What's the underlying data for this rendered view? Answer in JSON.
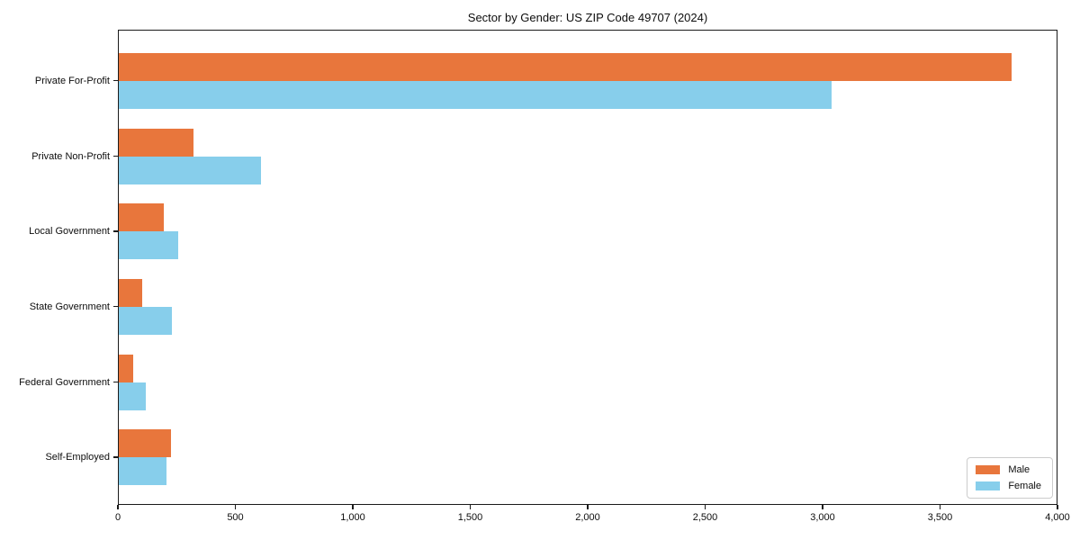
{
  "title": "Sector by Gender: US ZIP Code 49707 (2024)",
  "chart_data": {
    "type": "bar",
    "orientation": "horizontal",
    "title": "Sector by Gender: US ZIP Code 49707 (2024)",
    "categories": [
      "Private For-Profit",
      "Private Non-Profit",
      "Local Government",
      "State Government",
      "Federal Government",
      "Self-Employed"
    ],
    "series": [
      {
        "name": "Male",
        "color": "#e8763c",
        "values": [
          3805,
          320,
          195,
          105,
          65,
          225
        ]
      },
      {
        "name": "Female",
        "color": "#87ceeb",
        "values": [
          3040,
          610,
          255,
          230,
          120,
          205
        ]
      }
    ],
    "xlabel": "",
    "ylabel": "",
    "xlim": [
      0,
      4000
    ],
    "xticks": [
      0,
      500,
      1000,
      1500,
      2000,
      2500,
      3000,
      3500,
      4000
    ],
    "xtick_labels": [
      "0",
      "500",
      "1,000",
      "1,500",
      "2,000",
      "2,500",
      "3,000",
      "3,500",
      "4,000"
    ],
    "grid": false,
    "legend": {
      "entries": [
        "Male",
        "Female"
      ],
      "position": "lower right"
    }
  }
}
